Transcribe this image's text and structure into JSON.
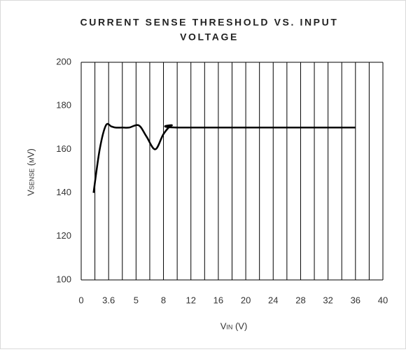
{
  "chart_data": {
    "type": "line",
    "title": [
      "CURRENT SENSE THRESHOLD VS. INPUT",
      "VOLTAGE"
    ],
    "x_label": "Vin (V)",
    "y_label": "Vsense (mV)",
    "xlim": [
      0,
      40
    ],
    "ylim": [
      100,
      200
    ],
    "xticks": [
      0,
      {
        "value": 4,
        "label": "3.6"
      },
      {
        "value": 8,
        "label": "5"
      },
      {
        "value": 12,
        "label": "8"
      },
      {
        "value": 16,
        "label": "12"
      },
      {
        "value": 20,
        "label": "16"
      },
      {
        "value": 24,
        "label": "20"
      },
      {
        "value": 28,
        "label": "24"
      },
      {
        "value": 32,
        "label": "28"
      },
      {
        "value": 36,
        "label": "32"
      },
      {
        "value": 40,
        "label": "36"
      }
    ],
    "xticks_end": {
      "value": 44,
      "label": "40"
    },
    "yticks": [
      100,
      120,
      140,
      160,
      180,
      200
    ],
    "grid": "x",
    "series": [
      {
        "color": "#000000",
        "x": [
          1.8,
          2.7,
          3.6,
          4.4,
          5,
          6,
          7,
          8.4,
          9.5,
          10.8,
          12,
          13.2,
          14.5,
          40
        ],
        "values": [
          140,
          160,
          171,
          170.5,
          170,
          170,
          170,
          171,
          166,
          160,
          167,
          171,
          170,
          170
        ]
      }
    ]
  }
}
